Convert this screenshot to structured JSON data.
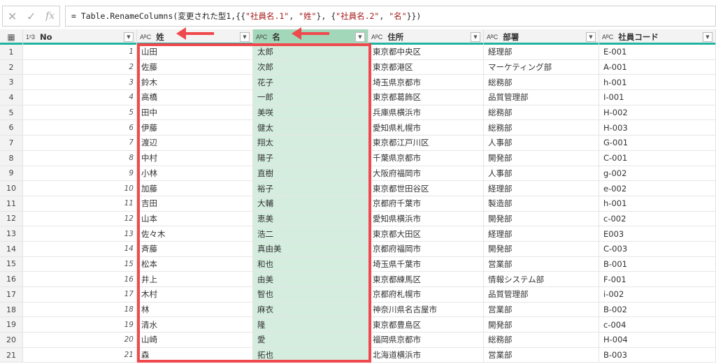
{
  "formula_bar": {
    "cancel_icon": "✕",
    "confirm_icon": "✓",
    "fx_label": "fx",
    "formula_prefix": "= Table.RenameColumns(変更された型1,{{",
    "s1": "\"社員名.1\"",
    "c1": ", ",
    "s2": "\"姓\"",
    "c2": "}, {",
    "s3": "\"社員名.2\"",
    "c3": ", ",
    "s4": "\"名\"",
    "c4": "}})"
  },
  "columns": [
    {
      "type": "1²3",
      "name": "No"
    },
    {
      "type": "AᴮC",
      "name": "姓"
    },
    {
      "type": "AᴮC",
      "name": "名"
    },
    {
      "type": "AᴮC",
      "name": "住所"
    },
    {
      "type": "AᴮC",
      "name": "部署"
    },
    {
      "type": "AᴮC",
      "name": "社員コード"
    }
  ],
  "selected_column": "名",
  "highlight_color": "#f0494d",
  "rows": [
    [
      "1",
      "山田",
      "太郎",
      "東京都中央区",
      "経理部",
      "E-001"
    ],
    [
      "2",
      "佐藤",
      "次郎",
      "東京都港区",
      "マーケティング部",
      "A-001"
    ],
    [
      "3",
      "鈴木",
      "花子",
      "埼玉県京都市",
      "総務部",
      "h-001"
    ],
    [
      "4",
      "高橋",
      "一郎",
      "東京都葛飾区",
      "品質管理部",
      "I-001"
    ],
    [
      "5",
      "田中",
      "美咲",
      "兵庫県横浜市",
      "総務部",
      "H-002"
    ],
    [
      "6",
      "伊藤",
      "健太",
      "愛知県札幌市",
      "総務部",
      "H-003"
    ],
    [
      "7",
      "渡辺",
      "翔太",
      "東京都江戸川区",
      "人事部",
      "G-001"
    ],
    [
      "8",
      "中村",
      "陽子",
      "千葉県京都市",
      "開発部",
      "C-001"
    ],
    [
      "9",
      "小林",
      "直樹",
      "大阪府福岡市",
      "人事部",
      "g-002"
    ],
    [
      "10",
      "加藤",
      "裕子",
      "東京都世田谷区",
      "経理部",
      "e-002"
    ],
    [
      "11",
      "吉田",
      "大輔",
      "京都府千葉市",
      "製造部",
      "h-001"
    ],
    [
      "12",
      "山本",
      "恵美",
      "愛知県横浜市",
      "開発部",
      "c-002"
    ],
    [
      "13",
      "佐々木",
      "浩二",
      "東京都大田区",
      "経理部",
      "E003"
    ],
    [
      "14",
      "斉藤",
      "真由美",
      "京都府福岡市",
      "開発部",
      "C-003"
    ],
    [
      "15",
      "松本",
      "和也",
      "埼玉県千葉市",
      "営業部",
      "B-001"
    ],
    [
      "16",
      "井上",
      "由美",
      "東京都練馬区",
      "情報システム部",
      "F-001"
    ],
    [
      "17",
      "木村",
      "智也",
      "京都府札幌市",
      "品質管理部",
      "i-002"
    ],
    [
      "18",
      "林",
      "麻衣",
      "神奈川県名古屋市",
      "営業部",
      "B-002"
    ],
    [
      "19",
      "清水",
      "隆",
      "東京都豊島区",
      "開発部",
      "c-004"
    ],
    [
      "20",
      "山崎",
      "愛",
      "福岡県京都市",
      "総務部",
      "H-004"
    ],
    [
      "21",
      "森",
      "拓也",
      "北海道横浜市",
      "営業部",
      "B-003"
    ]
  ]
}
